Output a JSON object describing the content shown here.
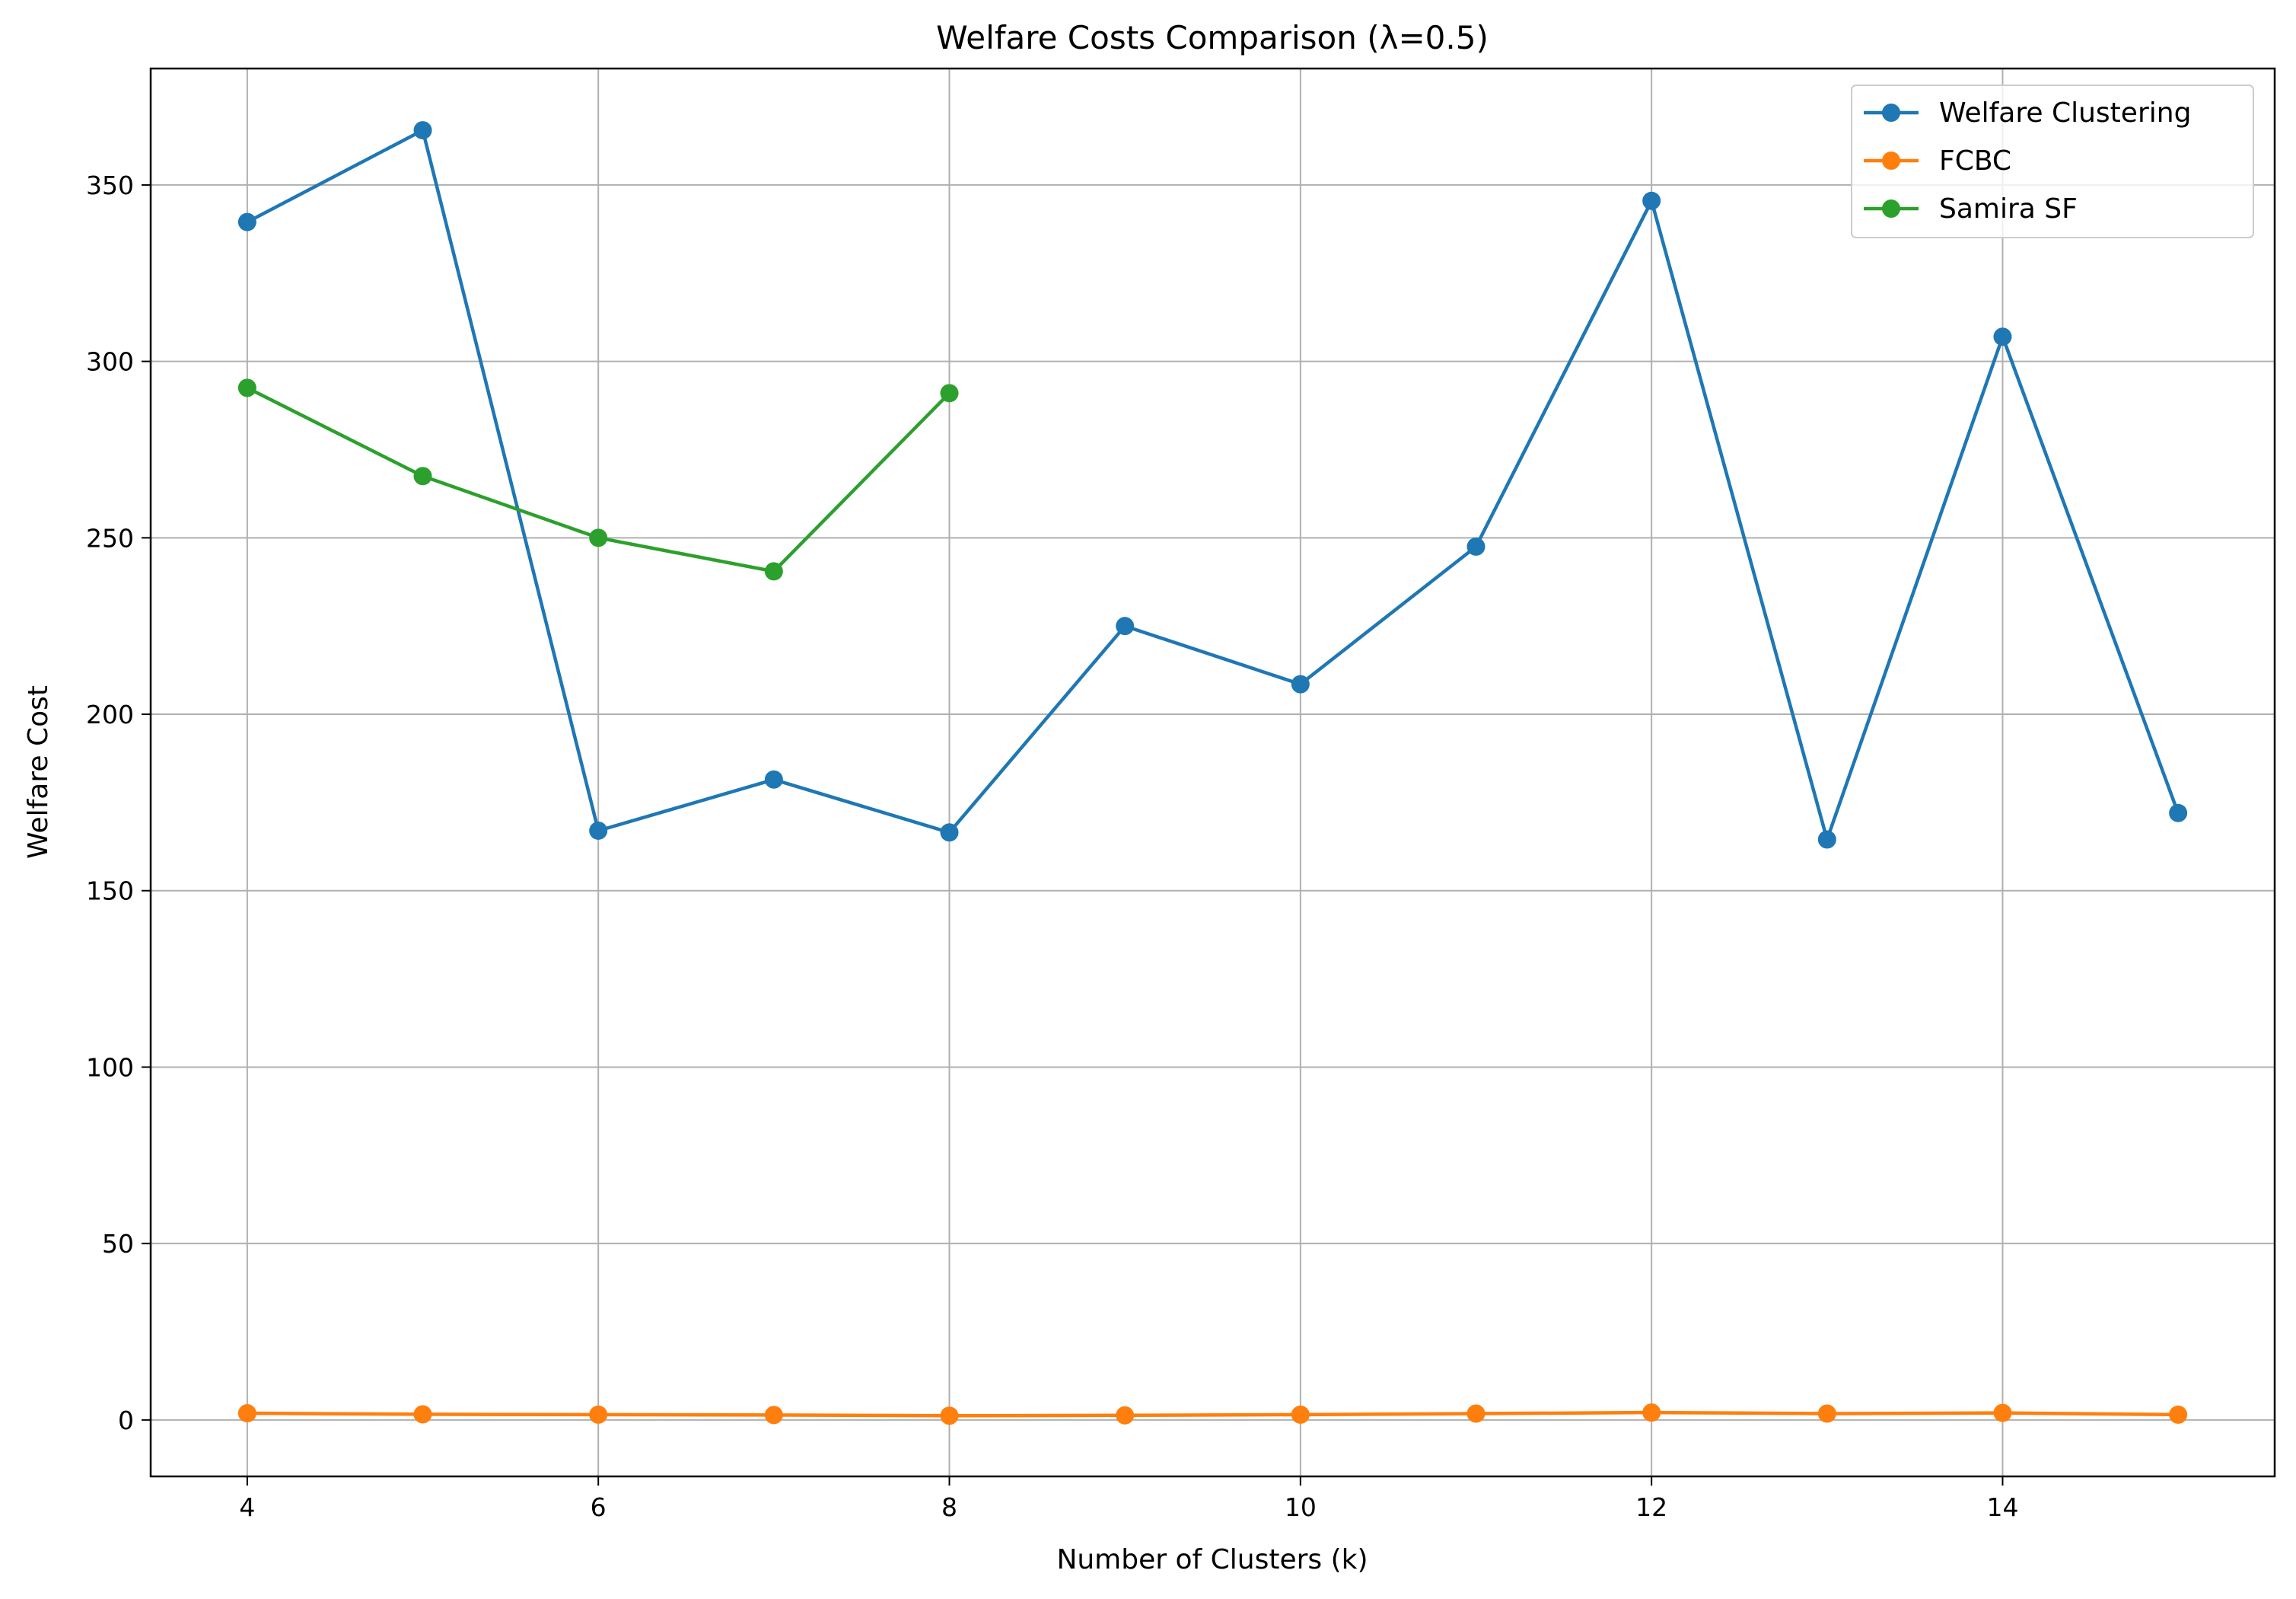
{
  "chart_data": {
    "type": "line",
    "title": "Welfare Costs Comparison (λ=0.5)",
    "xlabel": "Number of Clusters (k)",
    "ylabel": "Welfare Cost",
    "xlim": [
      3.45,
      15.55
    ],
    "ylim": [
      -16.0,
      383.0
    ],
    "xticks": [
      4,
      6,
      8,
      10,
      12,
      14
    ],
    "yticks": [
      0,
      50,
      100,
      150,
      200,
      250,
      300,
      350
    ],
    "grid": true,
    "legend_position": "top-right",
    "series": [
      {
        "name": "Welfare Clustering",
        "color": "#1f77b4",
        "x": [
          4,
          5,
          6,
          7,
          8,
          9,
          10,
          11,
          12,
          13,
          14,
          15
        ],
        "y": [
          339.5,
          365.5,
          167.0,
          181.5,
          166.5,
          225.0,
          208.5,
          247.5,
          345.5,
          164.5,
          307.0,
          172.0
        ]
      },
      {
        "name": "FCBC",
        "color": "#ff7f0e",
        "x": [
          4,
          5,
          6,
          7,
          8,
          9,
          10,
          11,
          12,
          13,
          14,
          15
        ],
        "y": [
          1.9,
          1.6,
          1.5,
          1.4,
          1.2,
          1.3,
          1.5,
          1.8,
          2.1,
          1.8,
          2.0,
          1.5
        ]
      },
      {
        "name": "Samira SF",
        "color": "#2ca02c",
        "x": [
          4,
          5,
          6,
          7,
          8
        ],
        "y": [
          292.5,
          267.5,
          250.0,
          240.5,
          291.0
        ]
      }
    ]
  }
}
